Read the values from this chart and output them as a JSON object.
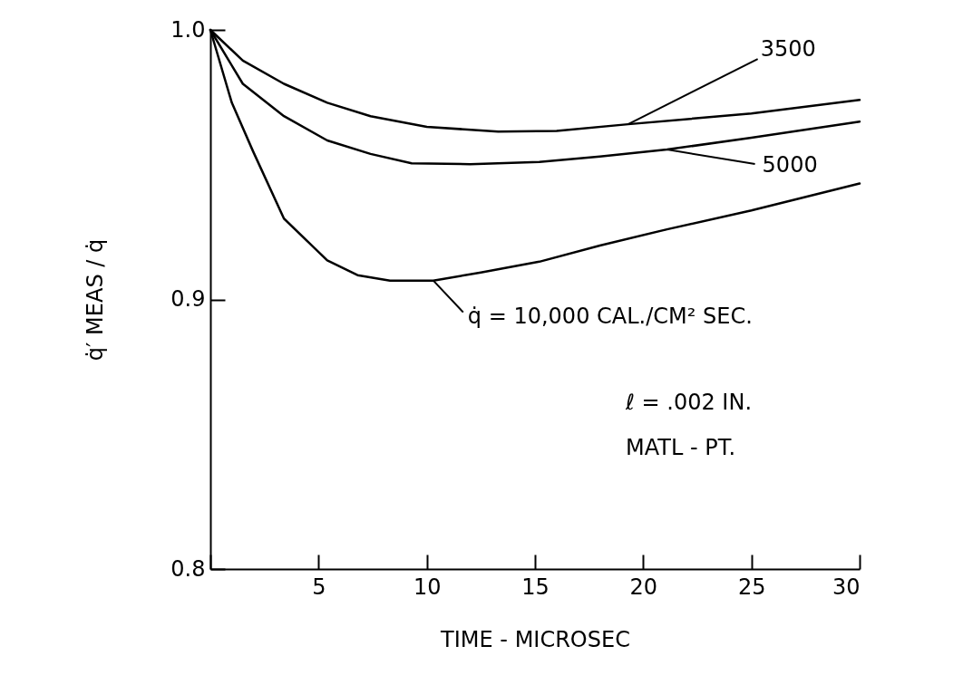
{
  "chart_data": {
    "type": "line",
    "xlabel": "TIME - MICROSEC",
    "ylabel": "q̇′ MEAS / q̇",
    "xlim": [
      0,
      30
    ],
    "xticks": [
      {
        "value": 0,
        "label": null
      },
      5,
      10,
      15,
      20,
      25,
      30
    ],
    "ylim": [
      0.8,
      1.0
    ],
    "yticks": [
      0.8,
      0.9,
      {
        "value": 1.0,
        "label": "1.0"
      }
    ],
    "grid": false,
    "marker": "none",
    "line_style": "solid",
    "series": [
      {
        "name": "3500",
        "color": "#000000",
        "x": [
          0,
          1.5,
          3.4,
          5.4,
          7.4,
          10,
          13.3,
          16,
          19.3,
          25,
          30
        ],
        "values": [
          1.0,
          0.9886,
          0.98,
          0.973,
          0.968,
          0.964,
          0.9623,
          0.9625,
          0.965,
          0.969,
          0.974
        ]
      },
      {
        "name": "5000",
        "color": "#000000",
        "x": [
          0,
          1.5,
          3.4,
          5.4,
          7.4,
          9.3,
          12,
          15.2,
          18,
          21.1,
          25,
          30
        ],
        "values": [
          1.0,
          0.98,
          0.968,
          0.959,
          0.954,
          0.9505,
          0.9502,
          0.951,
          0.953,
          0.9556,
          0.96,
          0.966
        ]
      },
      {
        "name": "q̇ = 10,000 CAL./CM² SEC.",
        "color": "#000000",
        "x": [
          0,
          0.99,
          1.97,
          3.4,
          5.4,
          6.8,
          8.3,
          10.3,
          12.5,
          15.2,
          18,
          21.1,
          25,
          30
        ],
        "values": [
          1.0,
          0.973,
          0.955,
          0.93,
          0.9145,
          0.909,
          0.907,
          0.907,
          0.91,
          0.914,
          0.92,
          0.926,
          0.933,
          0.943
        ]
      }
    ],
    "annotations": [
      "ℓ = .002 IN.",
      "MATL - PT."
    ]
  }
}
